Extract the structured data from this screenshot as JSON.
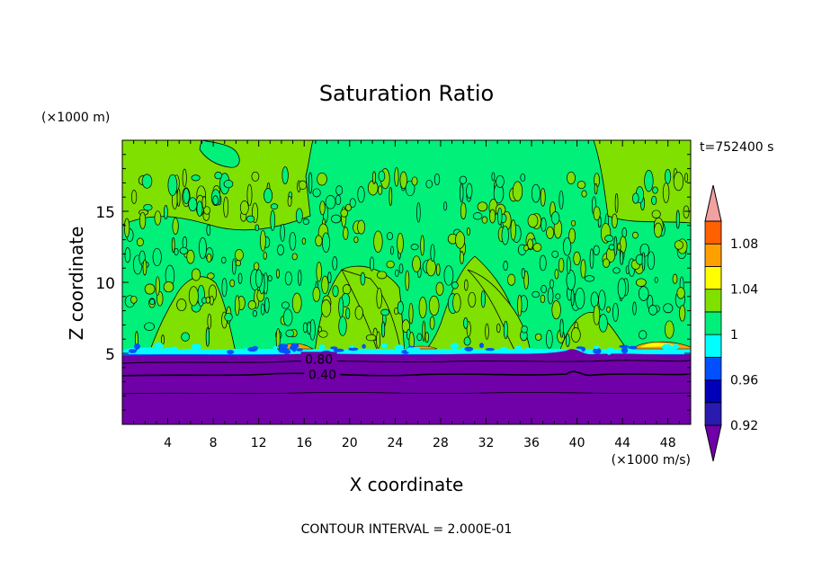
{
  "chart_data": {
    "type": "heatmap",
    "title": "Saturation Ratio",
    "xlabel": "X coordinate",
    "ylabel": "Z coordinate",
    "x_unit": "(×1000 m/s)",
    "y_unit": "(×1000 m)",
    "time_label": "t=752400 s",
    "footer": "CONTOUR INTERVAL = 2.000E-01",
    "xlim": [
      0,
      50
    ],
    "ylim": [
      0,
      20
    ],
    "x_ticks": [
      4,
      8,
      12,
      16,
      20,
      24,
      28,
      32,
      36,
      40,
      44,
      48
    ],
    "y_ticks": [
      5,
      10,
      15
    ],
    "x_tick_labels": [
      "4",
      "8",
      "12",
      "16",
      "20",
      "24",
      "28",
      "32",
      "36",
      "40",
      "44",
      "48"
    ],
    "y_tick_labels": [
      "5",
      "10",
      "15"
    ],
    "contour_labels": [
      {
        "text": "0.80",
        "x": 17.3,
        "z": 4.6
      },
      {
        "text": "0.40",
        "x": 17.6,
        "z": 3.5
      }
    ],
    "colorbar": {
      "levels": [
        0.92,
        0.94,
        0.96,
        0.98,
        1.0,
        1.02,
        1.04,
        1.06,
        1.08,
        1.1
      ],
      "colors": [
        "#7000a8",
        "#2a1ab0",
        "#0000b8",
        "#0050ff",
        "#00ffff",
        "#00f07a",
        "#80e000",
        "#ffff00",
        "#ffa000",
        "#ff6000",
        "#ff2020",
        "#f2a0a0"
      ],
      "tick_values": [
        0.92,
        0.96,
        1.0,
        1.04,
        1.08
      ],
      "tick_labels": [
        "0.92",
        "0.96",
        "1",
        "1.04",
        "1.08"
      ]
    }
  }
}
